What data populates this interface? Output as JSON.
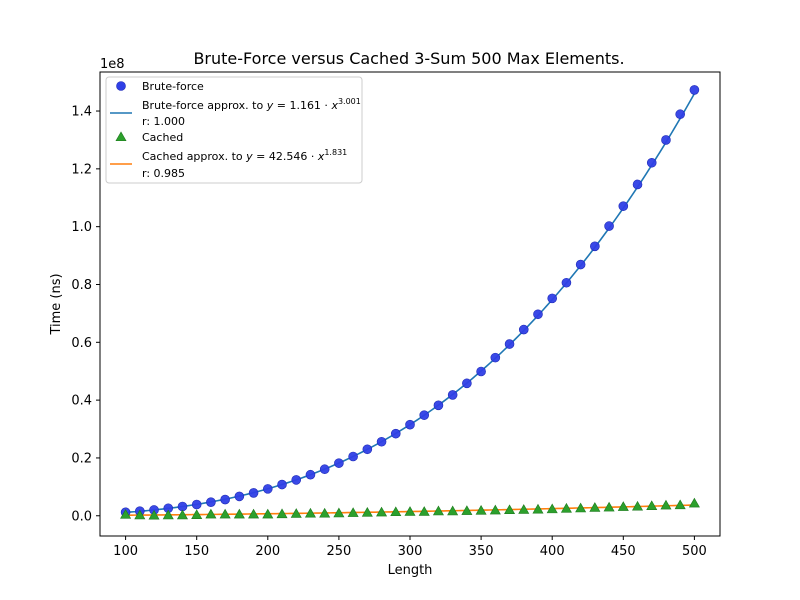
{
  "chart_data": {
    "type": "scatter",
    "title": "Brute-Force versus Cached 3-Sum 500 Max Elements.",
    "xlabel": "Length",
    "ylabel": "Time (ns)",
    "y_offset_label": "1e8",
    "xlim": [
      82,
      518
    ],
    "ylim": [
      -7000000.0,
      153500000.0
    ],
    "x_ticks": [
      100,
      150,
      200,
      250,
      300,
      350,
      400,
      450,
      500
    ],
    "y_ticks": [
      0,
      20000000,
      40000000,
      60000000,
      80000000,
      100000000,
      120000000,
      140000000
    ],
    "y_tick_labels": [
      "0.0",
      "0.2",
      "0.4",
      "0.6",
      "0.8",
      "1.0",
      "1.2",
      "1.4"
    ],
    "grid": false,
    "legend_position": "top-left",
    "x": [
      100,
      110,
      120,
      130,
      140,
      150,
      160,
      170,
      180,
      190,
      200,
      210,
      220,
      230,
      240,
      250,
      260,
      270,
      280,
      290,
      300,
      310,
      320,
      330,
      340,
      350,
      360,
      370,
      380,
      390,
      400,
      410,
      420,
      430,
      440,
      450,
      460,
      470,
      480,
      490,
      500
    ],
    "series": [
      {
        "name": "Brute-force",
        "kind": "scatter",
        "marker": "circle",
        "color": "#2f3fe6",
        "values": [
          1200000,
          1600000,
          2000000,
          2600000,
          3200000,
          3900000,
          4700000,
          5600000,
          6700000,
          7900000,
          9300000,
          10800000,
          12400000,
          14200000,
          16100000,
          18200000,
          20500000,
          23000000,
          25600000,
          28400000,
          31500000,
          34800000,
          38200000,
          41800000,
          45800000,
          49900000,
          54700000,
          59400000,
          64400000,
          69700000,
          75200000,
          80600000,
          86900000,
          93200000,
          100200000,
          107100000,
          114600000,
          122100000,
          130000000,
          138900000,
          147300000
        ]
      },
      {
        "name": "Brute-force approx. to",
        "kind": "line",
        "color": "#1f77b4",
        "equation": {
          "lhs": "y",
          "coef": "1.161",
          "base": "x",
          "exp": "3.001"
        },
        "r_label": "r: 1.000",
        "model": {
          "a": 1.161,
          "b": 3.001
        }
      },
      {
        "name": "Cached",
        "kind": "scatter",
        "marker": "triangle",
        "color": "#2ca02c",
        "values": [
          400000,
          200000,
          100000,
          200000,
          200000,
          300000,
          500000,
          500000,
          500000,
          500000,
          500000,
          600000,
          700000,
          800000,
          800000,
          900000,
          1000000,
          1100000,
          1200000,
          1300000,
          1400000,
          1400000,
          1600000,
          1600000,
          1700000,
          1800000,
          1900000,
          2000000,
          2100000,
          2200000,
          2300000,
          2500000,
          2600000,
          2800000,
          2900000,
          3100000,
          3200000,
          3400000,
          3600000,
          3700000,
          4300000
        ]
      },
      {
        "name": "Cached approx. to",
        "kind": "line",
        "color": "#ff7f0e",
        "equation": {
          "lhs": "y",
          "coef": "42.546",
          "base": "x",
          "exp": "1.831"
        },
        "r_label": "r: 0.985",
        "model": {
          "a": 42.546,
          "b": 1.831
        }
      }
    ]
  }
}
